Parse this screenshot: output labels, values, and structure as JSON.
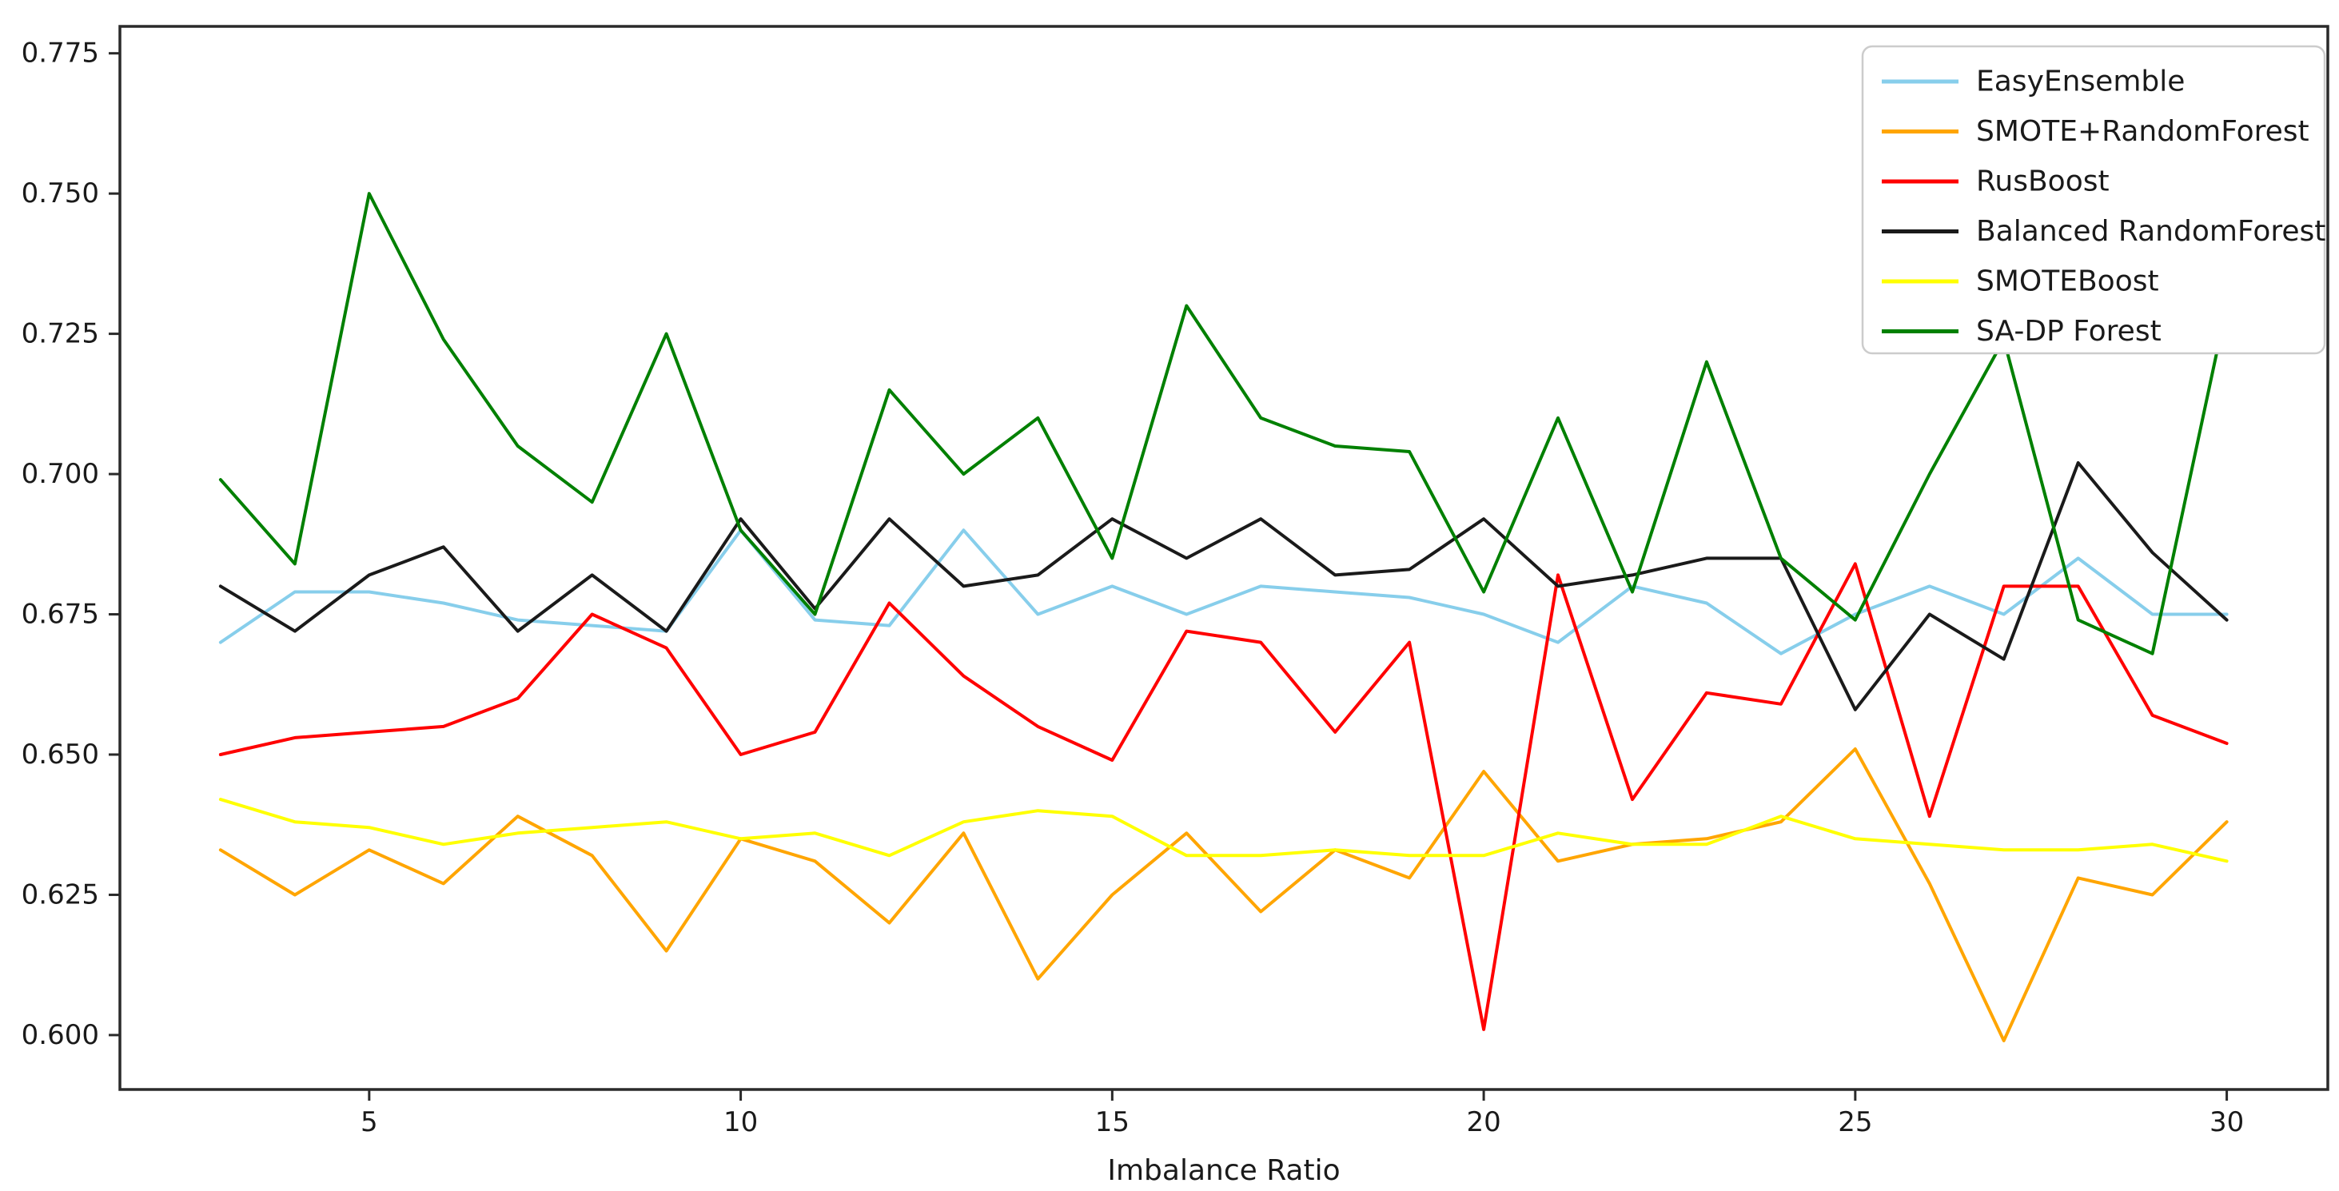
{
  "chart_data": {
    "type": "line",
    "title": "",
    "xlabel": "Imbalance Ratio",
    "ylabel": "",
    "grid": false,
    "legend_position": "upper right",
    "x": [
      3,
      4,
      5,
      6,
      7,
      8,
      9,
      10,
      11,
      12,
      13,
      14,
      15,
      16,
      17,
      18,
      19,
      20,
      21,
      22,
      23,
      24,
      25,
      26,
      27,
      28,
      29,
      30
    ],
    "xlim": [
      1.645,
      31.36
    ],
    "ylim": [
      0.5903,
      0.7798
    ],
    "xticks": [
      5,
      10,
      15,
      20,
      25,
      30
    ],
    "yticks": [
      0.6,
      0.625,
      0.65,
      0.675,
      0.7,
      0.725,
      0.75,
      0.775
    ],
    "series": [
      {
        "name": "EasyEnsemble",
        "color": "#87ceeb",
        "values": [
          0.67,
          0.679,
          0.679,
          0.677,
          0.674,
          0.673,
          0.672,
          0.69,
          0.674,
          0.673,
          0.69,
          0.675,
          0.68,
          0.675,
          0.68,
          0.679,
          0.678,
          0.675,
          0.67,
          0.68,
          0.677,
          0.668,
          0.675,
          0.68,
          0.675,
          0.685,
          0.675,
          0.675
        ]
      },
      {
        "name": "SMOTE+RandomForest",
        "color": "#ffa500",
        "values": [
          0.633,
          0.625,
          0.633,
          0.627,
          0.639,
          0.632,
          0.615,
          0.635,
          0.631,
          0.62,
          0.636,
          0.61,
          0.625,
          0.636,
          0.622,
          0.633,
          0.628,
          0.647,
          0.631,
          0.634,
          0.635,
          0.638,
          0.651,
          0.627,
          0.599,
          0.628,
          0.625,
          0.638
        ]
      },
      {
        "name": "RusBoost",
        "color": "#ff0000",
        "values": [
          0.65,
          0.653,
          0.654,
          0.655,
          0.66,
          0.675,
          0.669,
          0.65,
          0.654,
          0.677,
          0.664,
          0.655,
          0.649,
          0.672,
          0.67,
          0.654,
          0.67,
          0.601,
          0.682,
          0.642,
          0.661,
          0.659,
          0.684,
          0.639,
          0.68,
          0.68,
          0.657,
          0.652
        ]
      },
      {
        "name": "Balanced RandomForest",
        "color": "#1a1a1a",
        "values": [
          0.68,
          0.672,
          0.682,
          0.687,
          0.672,
          0.682,
          0.672,
          0.692,
          0.676,
          0.692,
          0.68,
          0.682,
          0.692,
          0.685,
          0.692,
          0.682,
          0.683,
          0.692,
          0.68,
          0.682,
          0.685,
          0.685,
          0.658,
          0.675,
          0.667,
          0.702,
          0.686,
          0.674
        ]
      },
      {
        "name": "SMOTEBoost",
        "color": "#ffff00",
        "values": [
          0.642,
          0.638,
          0.637,
          0.634,
          0.636,
          0.637,
          0.638,
          0.635,
          0.636,
          0.632,
          0.638,
          0.64,
          0.639,
          0.632,
          0.632,
          0.633,
          0.632,
          0.632,
          0.636,
          0.634,
          0.634,
          0.639,
          0.635,
          0.634,
          0.633,
          0.633,
          0.634,
          0.631
        ]
      },
      {
        "name": "SA-DP Forest",
        "color": "#008000",
        "values": [
          0.699,
          0.684,
          0.75,
          0.724,
          0.705,
          0.695,
          0.725,
          0.69,
          0.675,
          0.715,
          0.7,
          0.71,
          0.685,
          0.73,
          0.71,
          0.705,
          0.704,
          0.679,
          0.71,
          0.679,
          0.72,
          0.685,
          0.674,
          0.7,
          0.724,
          0.674,
          0.668,
          0.73
        ]
      }
    ]
  },
  "axis_labels": {
    "x_ticks": [
      "5",
      "10",
      "15",
      "20",
      "25",
      "30"
    ],
    "y_ticks": [
      "0.600",
      "0.625",
      "0.650",
      "0.675",
      "0.700",
      "0.725",
      "0.750",
      "0.775"
    ]
  },
  "colors": {
    "spine": "#2a2a2a",
    "background": "#ffffff",
    "legend_border": "#cccccc"
  }
}
